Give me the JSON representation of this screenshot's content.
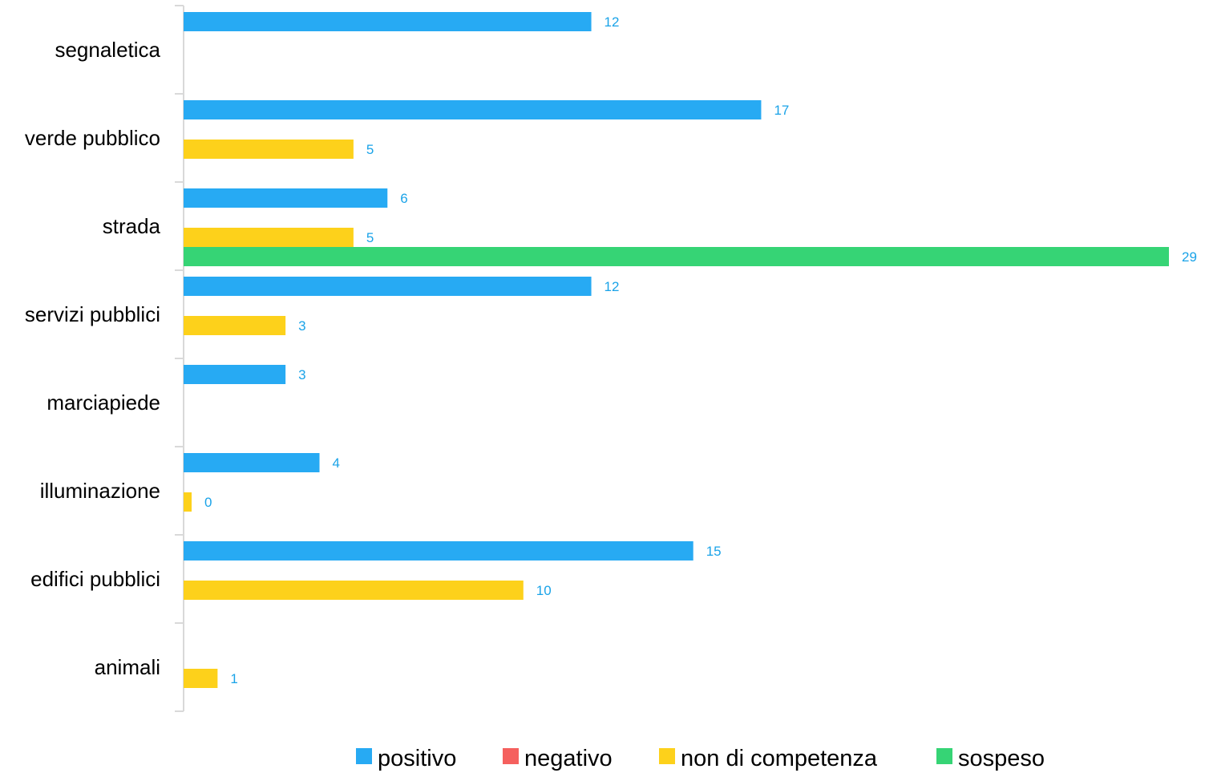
{
  "chart_data": {
    "type": "bar",
    "orientation": "horizontal",
    "categories": [
      "segnaletica",
      "verde pubblico",
      "strada",
      "servizi pubblici",
      "marciapiede",
      "illuminazione",
      "edifici pubblici",
      "animali"
    ],
    "series": [
      {
        "name": "positivo",
        "color": "#27AAF3",
        "values": [
          12,
          17,
          6,
          12,
          3,
          4,
          15,
          null
        ]
      },
      {
        "name": "negativo",
        "color": "#F5605E",
        "values": [
          null,
          null,
          null,
          null,
          null,
          null,
          null,
          null
        ]
      },
      {
        "name": "non di competenza",
        "color": "#FDD11B",
        "values": [
          null,
          5,
          5,
          3,
          null,
          0,
          10,
          1
        ]
      },
      {
        "name": "sospeso",
        "color": "#36D475",
        "values": [
          null,
          null,
          29,
          null,
          null,
          null,
          null,
          null
        ]
      }
    ],
    "xlim": [
      0,
      29
    ],
    "grid": false,
    "legend_position": "bottom",
    "data_label_color": "#1AA3E8",
    "axis_color": "#D9D9D9"
  }
}
